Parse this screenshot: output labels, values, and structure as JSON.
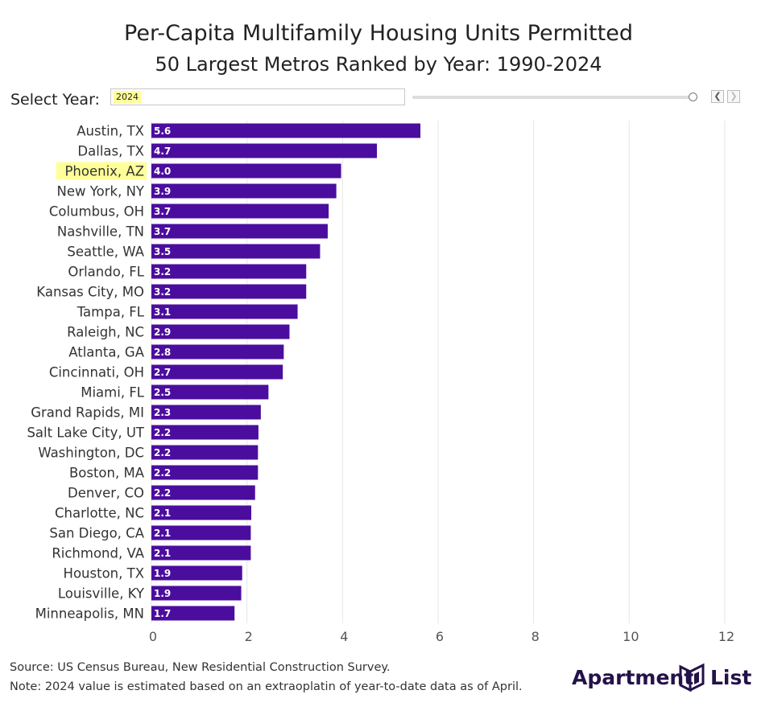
{
  "header": {
    "title": "Per-Capita Multifamily Housing Units Permitted",
    "subtitle": "50 Largest Metros Ranked by Year: 1990-2024"
  },
  "controls": {
    "year_label": "Select Year:",
    "year_value": "2024",
    "slider_position": 1.0,
    "prev_icon": "chevron-left-icon",
    "next_icon": "chevron-right-icon"
  },
  "colors": {
    "bar": "#4b0d9e",
    "bar_label": "#ffffff",
    "highlight": "#ffff99",
    "grid": "#e6e6e6"
  },
  "chart_data": {
    "type": "bar",
    "orientation": "horizontal",
    "categories": [
      "Austin, TX",
      "Dallas, TX",
      "Phoenix, AZ",
      "New York, NY",
      "Columbus, OH",
      "Nashville, TN",
      "Seattle, WA",
      "Orlando, FL",
      "Kansas City, MO",
      "Tampa, FL",
      "Raleigh, NC",
      "Atlanta, GA",
      "Cincinnati, OH",
      "Miami, FL",
      "Grand Rapids, MI",
      "Salt Lake City, UT",
      "Washington, DC",
      "Boston, MA",
      "Denver, CO",
      "Charlotte, NC",
      "San Diego, CA",
      "Richmond, VA",
      "Houston, TX",
      "Louisville, KY",
      "Minneapolis, MN"
    ],
    "values": [
      5.63,
      4.72,
      3.97,
      3.87,
      3.71,
      3.69,
      3.53,
      3.24,
      3.24,
      3.06,
      2.89,
      2.77,
      2.75,
      2.45,
      2.29,
      2.24,
      2.23,
      2.23,
      2.17,
      2.09,
      2.08,
      2.08,
      1.9,
      1.88,
      1.74
    ],
    "value_labels": [
      "5.6",
      "4.7",
      "4.0",
      "3.9",
      "3.7",
      "3.7",
      "3.5",
      "3.2",
      "3.2",
      "3.1",
      "2.9",
      "2.8",
      "2.7",
      "2.5",
      "2.3",
      "2.2",
      "2.2",
      "2.2",
      "2.2",
      "2.1",
      "2.1",
      "2.1",
      "1.9",
      "1.9",
      "1.7"
    ],
    "highlighted_category": "Phoenix, AZ",
    "xlim": [
      0,
      12
    ],
    "x_ticks": [
      "0",
      "2",
      "4",
      "6",
      "8",
      "10",
      "12"
    ],
    "x_tick_values": [
      0,
      2,
      4,
      6,
      8,
      10,
      12
    ],
    "grid": true,
    "xlabel": "",
    "ylabel": ""
  },
  "footer": {
    "source": "Source: US Census Bureau, New Residential Construction Survey.",
    "note": "Note: 2024 value is estimated based on an extraoplatin of year-to-date data as of April.",
    "logo_left": "Apartment",
    "logo_right": "List",
    "logo_icon": "apartment-list-logo-icon"
  }
}
